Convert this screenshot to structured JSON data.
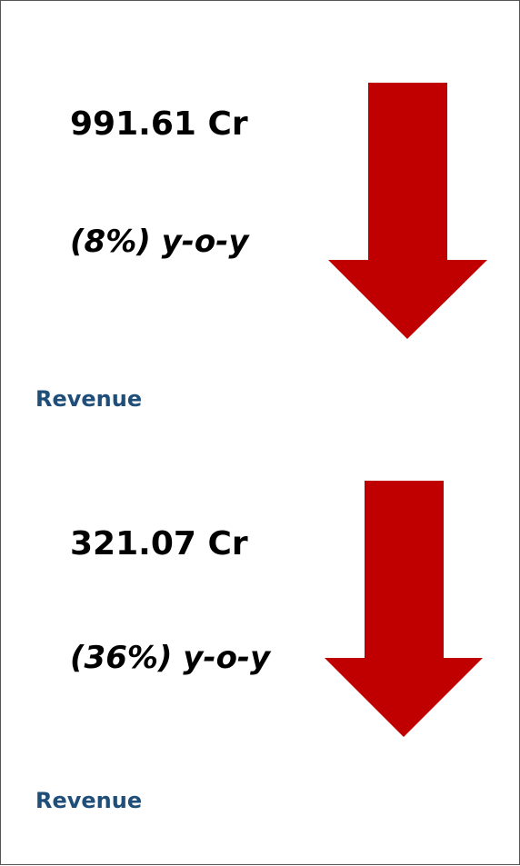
{
  "cards": [
    {
      "value": "991.61 Cr",
      "change": "(8%) y-o-y",
      "label": "Revenue"
    },
    {
      "value": "321.07 Cr",
      "change": "(36%) y-o-y",
      "label": "Revenue"
    }
  ]
}
